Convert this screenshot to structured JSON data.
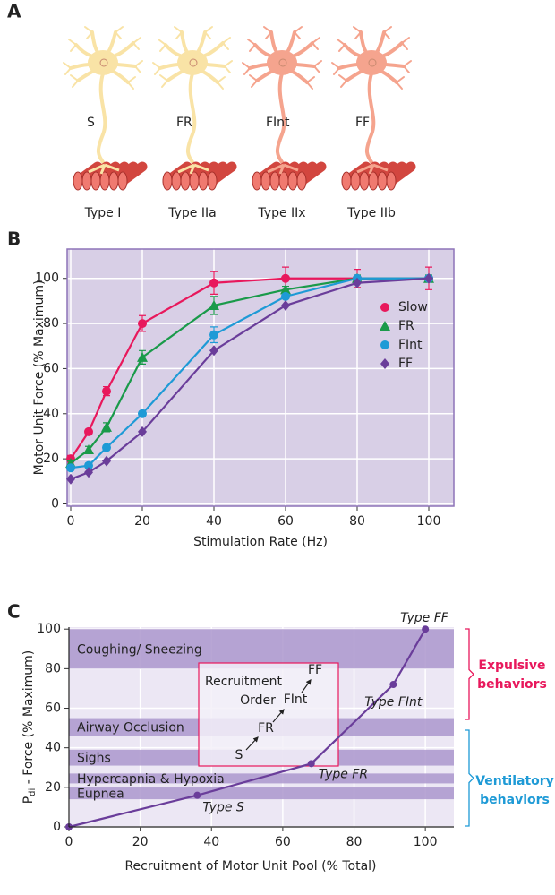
{
  "panel_a": {
    "panel_label": "A",
    "units": [
      {
        "name": "S",
        "fiber_type": "Type I",
        "color": "#f9e3a6"
      },
      {
        "name": "FR",
        "fiber_type": "Type IIa",
        "color": "#f9e3a6"
      },
      {
        "name": "FInt",
        "fiber_type": "Type IIx",
        "color": "#f5a48e"
      },
      {
        "name": "FF",
        "fiber_type": "Type IIb",
        "color": "#f5a48e"
      }
    ]
  },
  "chart_data": [
    {
      "type": "line",
      "panel_label": "B",
      "xlabel": "Stimulation Rate (Hz)",
      "ylabel": "Motor Unit Force (% Maximum)",
      "x": [
        0,
        5,
        10,
        20,
        40,
        60,
        80,
        100
      ],
      "series": [
        {
          "name": "Slow",
          "color": "#e8185c",
          "marker": "circle",
          "values": [
            20,
            32,
            50,
            80,
            98,
            100,
            100,
            100
          ],
          "errors": [
            1.5,
            1,
            2,
            3.5,
            5,
            5,
            4,
            5
          ]
        },
        {
          "name": "FR",
          "color": "#1a9a4a",
          "marker": "triangle",
          "values": [
            18,
            24,
            34,
            65,
            88,
            95,
            100,
            100
          ],
          "errors": [
            1,
            1.5,
            2,
            3,
            4,
            1.5,
            1.5,
            1.5
          ]
        },
        {
          "name": "FInt",
          "color": "#1e9ad6",
          "marker": "circle",
          "values": [
            16,
            17,
            25,
            40,
            75,
            92,
            100,
            100
          ],
          "errors": [
            1,
            1,
            1,
            1,
            3.5,
            1,
            1,
            1
          ]
        },
        {
          "name": "FF",
          "color": "#6a3d9a",
          "marker": "diamond",
          "values": [
            11,
            14,
            19,
            32,
            68,
            88,
            98,
            100
          ]
        }
      ],
      "xlim": [
        -1,
        107
      ],
      "ylim": [
        -1,
        113
      ],
      "xticks": [
        0,
        20,
        40,
        60,
        80,
        100
      ],
      "yticks": [
        0,
        20,
        40,
        60,
        80,
        100
      ],
      "grid": true,
      "background": "#d8cfe6"
    },
    {
      "type": "line",
      "panel_label": "C",
      "xlabel": "Recruitment of Motor Unit Pool (% Total)",
      "ylabel_parts": [
        "P",
        "di",
        " - Force (% Maximum)"
      ],
      "x": [
        0,
        36,
        68,
        91,
        100
      ],
      "series": [
        {
          "color": "#6a3d9a",
          "values": [
            0,
            16,
            32,
            72,
            100
          ],
          "point_labels": [
            null,
            "Type S",
            "Type FR",
            "Type FInt",
            "Type FF"
          ]
        }
      ],
      "bands": [
        {
          "label": "Coughing/ Sneezing",
          "from": 80,
          "to": 100
        },
        {
          "label": "Airway Occlusion",
          "from": 46,
          "to": 55
        },
        {
          "label": "Sighs",
          "from": 31,
          "to": 39
        },
        {
          "label": "Hypercapnia & Hypoxia",
          "from": 22,
          "to": 27
        },
        {
          "label": "Eupnea",
          "from": 14,
          "to": 20
        }
      ],
      "annotation": {
        "title_lines": [
          "Recruitment",
          "Order"
        ],
        "sequence": [
          "S",
          "FR",
          "FInt",
          "FF"
        ],
        "color": "#e8185c"
      },
      "behavior_groups": [
        {
          "lines": [
            "Expulsive",
            "behaviors"
          ],
          "color": "#e8185c"
        },
        {
          "lines": [
            "Ventilatory",
            "behaviors"
          ],
          "color": "#1e9ad6"
        }
      ],
      "xlim": [
        0,
        108
      ],
      "ylim": [
        0,
        101
      ],
      "xticks": [
        0,
        20,
        40,
        60,
        80,
        100
      ],
      "yticks": [
        0,
        20,
        40,
        60,
        80,
        100
      ],
      "grid": true,
      "background": "#ece7f4",
      "band_color": "#ab97cc"
    }
  ]
}
